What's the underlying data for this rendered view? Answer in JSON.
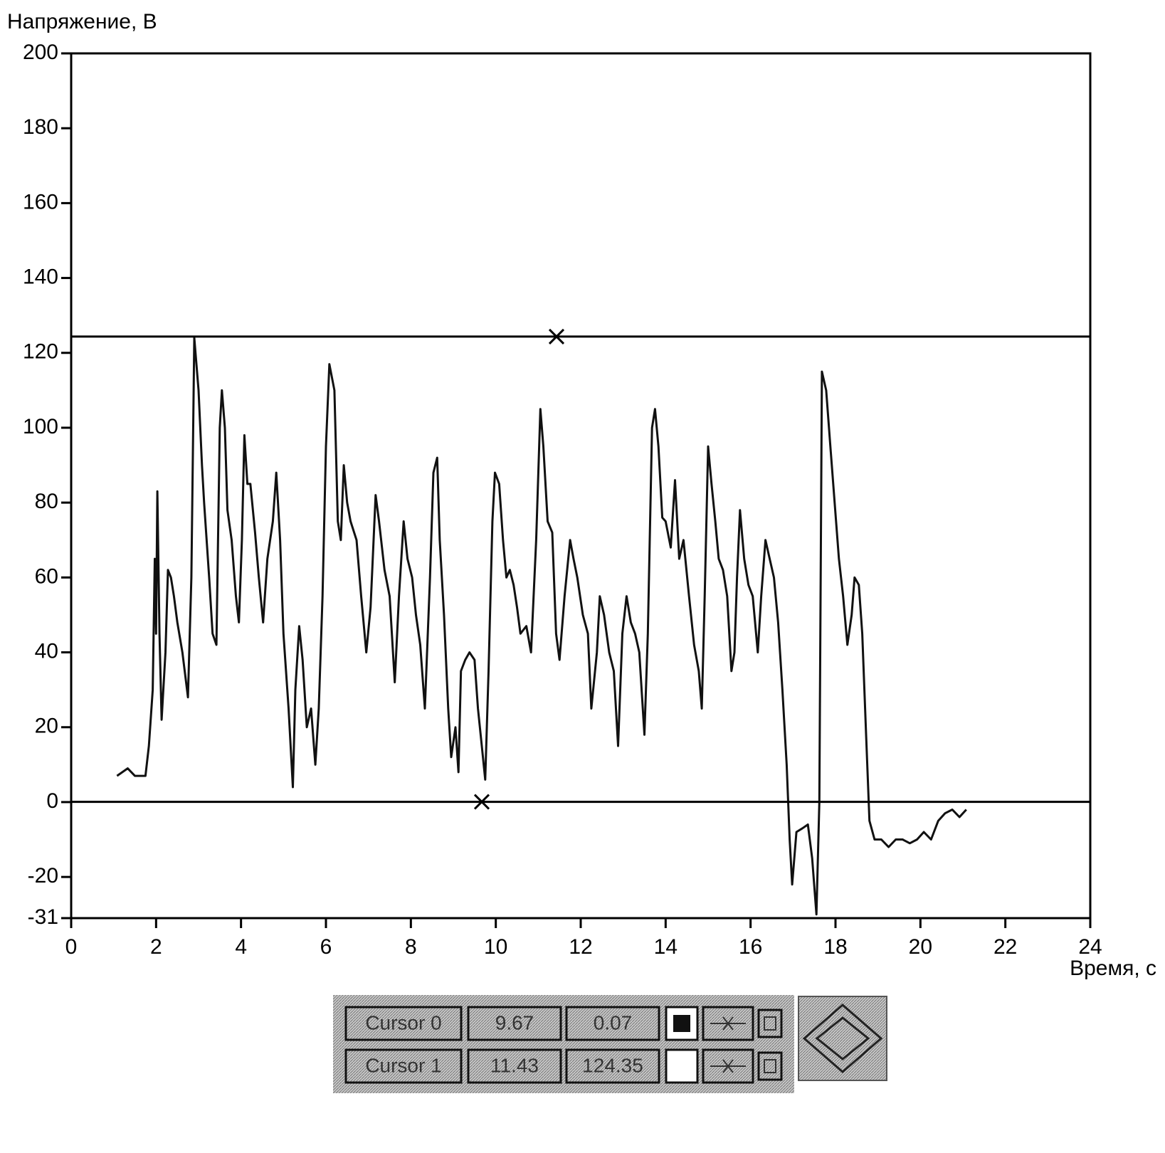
{
  "chart_data": {
    "type": "line",
    "y_label": "Напряжение, В",
    "x_label": "Время, с",
    "xlim": [
      0,
      24
    ],
    "xticks": [
      0,
      2,
      4,
      6,
      8,
      10,
      12,
      14,
      16,
      18,
      20,
      22,
      24
    ],
    "ylim": [
      -31,
      200
    ],
    "yticks": [
      -31,
      -20,
      0,
      20,
      40,
      60,
      80,
      100,
      120,
      140,
      160,
      180,
      200
    ],
    "color": "#111111",
    "x": [
      1.08,
      1.33,
      1.5,
      1.75,
      1.83,
      1.92,
      1.97,
      2.0,
      2.03,
      2.08,
      2.13,
      2.22,
      2.28,
      2.35,
      2.42,
      2.5,
      2.62,
      2.75,
      2.83,
      2.9,
      3.0,
      3.08,
      3.13,
      3.25,
      3.33,
      3.42,
      3.5,
      3.55,
      3.62,
      3.68,
      3.78,
      3.88,
      3.95,
      4.02,
      4.08,
      4.15,
      4.22,
      4.33,
      4.42,
      4.52,
      4.62,
      4.75,
      4.83,
      4.92,
      5.0,
      5.12,
      5.22,
      5.28,
      5.37,
      5.45,
      5.55,
      5.65,
      5.75,
      5.83,
      5.92,
      6.0,
      6.08,
      6.2,
      6.28,
      6.35,
      6.42,
      6.5,
      6.58,
      6.72,
      6.83,
      6.95,
      7.05,
      7.17,
      7.25,
      7.38,
      7.5,
      7.62,
      7.72,
      7.83,
      7.92,
      8.03,
      8.12,
      8.22,
      8.33,
      8.45,
      8.53,
      8.62,
      8.68,
      8.78,
      8.88,
      8.95,
      9.05,
      9.12,
      9.18,
      9.28,
      9.38,
      9.5,
      9.58,
      9.67,
      9.75,
      9.83,
      9.92,
      9.98,
      10.08,
      10.17,
      10.25,
      10.33,
      10.42,
      10.5,
      10.58,
      10.72,
      10.83,
      10.95,
      11.05,
      11.12,
      11.22,
      11.33,
      11.42,
      11.5,
      11.62,
      11.75,
      11.83,
      11.92,
      12.05,
      12.17,
      12.25,
      12.38,
      12.45,
      12.55,
      12.67,
      12.78,
      12.88,
      12.98,
      13.08,
      13.18,
      13.28,
      13.38,
      13.5,
      13.58,
      13.68,
      13.75,
      13.83,
      13.92,
      14.0,
      14.12,
      14.22,
      14.32,
      14.42,
      14.55,
      14.67,
      14.78,
      14.85,
      14.92,
      15.0,
      15.08,
      15.17,
      15.25,
      15.35,
      15.45,
      15.55,
      15.62,
      15.68,
      15.75,
      15.85,
      15.95,
      16.05,
      16.17,
      16.25,
      16.35,
      16.45,
      16.55,
      16.65,
      16.75,
      16.85,
      16.92,
      16.98,
      17.08,
      17.22,
      17.35,
      17.45,
      17.55,
      17.62,
      17.68,
      17.78,
      17.88,
      17.98,
      18.08,
      18.18,
      18.28,
      18.38,
      18.45,
      18.55,
      18.63,
      18.72,
      18.8,
      18.92,
      19.08,
      19.25,
      19.42,
      19.58,
      19.75,
      19.92,
      20.08,
      20.25,
      20.42,
      20.58,
      20.75,
      20.92,
      21.08
    ],
    "values": [
      7,
      9,
      7,
      7,
      15,
      30,
      65,
      45,
      83,
      45,
      22,
      40,
      62,
      60,
      55,
      48,
      40,
      28,
      60,
      124,
      110,
      90,
      80,
      60,
      45,
      42,
      100,
      110,
      100,
      78,
      70,
      55,
      48,
      70,
      98,
      85,
      85,
      72,
      60,
      48,
      65,
      75,
      88,
      70,
      45,
      25,
      4,
      30,
      47,
      38,
      20,
      25,
      10,
      25,
      55,
      95,
      117,
      110,
      75,
      70,
      90,
      80,
      75,
      70,
      55,
      40,
      52,
      82,
      75,
      62,
      55,
      32,
      55,
      75,
      65,
      60,
      50,
      42,
      25,
      60,
      88,
      92,
      70,
      50,
      25,
      12,
      20,
      8,
      35,
      38,
      40,
      38,
      25,
      15,
      6,
      35,
      75,
      88,
      85,
      70,
      60,
      62,
      58,
      52,
      45,
      47,
      40,
      70,
      105,
      95,
      75,
      72,
      45,
      38,
      55,
      70,
      65,
      60,
      50,
      45,
      25,
      40,
      55,
      50,
      40,
      35,
      15,
      45,
      55,
      48,
      45,
      40,
      18,
      45,
      100,
      105,
      95,
      76,
      75,
      68,
      86,
      65,
      70,
      55,
      42,
      35,
      25,
      55,
      95,
      85,
      75,
      65,
      62,
      55,
      35,
      40,
      60,
      78,
      65,
      58,
      55,
      40,
      55,
      70,
      65,
      60,
      48,
      30,
      10,
      -10,
      -22,
      -8,
      -7,
      -6,
      -15,
      -30,
      0,
      115,
      110,
      95,
      80,
      65,
      55,
      42,
      50,
      60,
      58,
      45,
      18,
      -5,
      -10,
      -10,
      -12,
      -10,
      -10,
      -11,
      -10,
      -8,
      -10,
      -5,
      -3,
      -2,
      -4,
      -2
    ],
    "cursors": [
      {
        "name": "Cursor 0",
        "x": 9.67,
        "y": 0.07
      },
      {
        "name": "Cursor 1",
        "x": 11.43,
        "y": 124.35
      }
    ]
  }
}
